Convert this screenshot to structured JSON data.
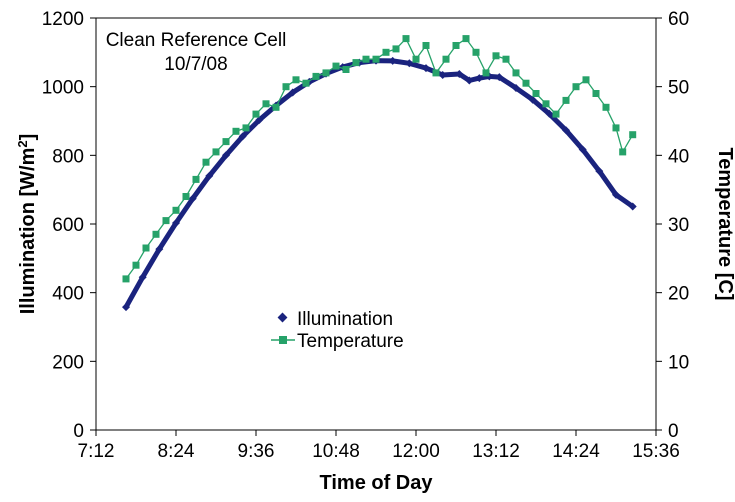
{
  "chart_data": {
    "type": "scatter",
    "annotation": {
      "line1": "Clean Reference Cell",
      "line2": "10/7/08"
    },
    "xlabel": "Time of Day",
    "ylabel_left_main": "Illumination [W/m",
    "ylabel_left_sup": "2",
    "ylabel_left_end": "]",
    "ylabel_right": "Temperature [C]",
    "x_ticks": [
      "7:12",
      "8:24",
      "9:36",
      "10:48",
      "12:00",
      "13:12",
      "14:24",
      "15:36"
    ],
    "x_tick_hours": [
      7.2,
      8.4,
      9.6,
      10.8,
      12.0,
      13.2,
      14.4,
      15.6
    ],
    "xlim_hours": [
      7.2,
      15.6
    ],
    "y_left_ticks": [
      "0",
      "200",
      "400",
      "600",
      "800",
      "1000",
      "1200"
    ],
    "y_left_lim": [
      0,
      1200
    ],
    "y_right_ticks": [
      "0",
      "10",
      "20",
      "30",
      "40",
      "50",
      "60"
    ],
    "y_right_lim": [
      0,
      60
    ],
    "grid": false,
    "legend": {
      "position": "center-lower",
      "entries": [
        "Illumination",
        "Temperature"
      ]
    },
    "series": [
      {
        "name": "Illumination",
        "axis": "left",
        "color": "#1a237e",
        "marker": "diamond",
        "x_hours": [
          7.65,
          7.9,
          8.15,
          8.4,
          8.65,
          8.9,
          9.15,
          9.4,
          9.65,
          9.9,
          10.15,
          10.4,
          10.65,
          10.9,
          11.15,
          11.4,
          11.65,
          11.9,
          12.15,
          12.4,
          12.65,
          12.8,
          12.95,
          13.1,
          13.25,
          13.5,
          13.75,
          14.0,
          14.25,
          14.5,
          14.75,
          15.0,
          15.25
        ],
        "y": [
          358,
          445,
          527,
          603,
          674,
          740,
          800,
          855,
          903,
          945,
          983,
          1014,
          1038,
          1057,
          1070,
          1076,
          1075,
          1068,
          1054,
          1034,
          1037,
          1018,
          1025,
          1030,
          1028,
          996,
          962,
          921,
          873,
          817,
          754,
          685,
          651
        ]
      },
      {
        "name": "Temperature",
        "axis": "right",
        "color": "#26a269",
        "marker": "square",
        "x_hours": [
          7.65,
          7.8,
          7.95,
          8.1,
          8.25,
          8.4,
          8.55,
          8.7,
          8.85,
          9.0,
          9.15,
          9.3,
          9.45,
          9.6,
          9.75,
          9.9,
          10.05,
          10.2,
          10.35,
          10.5,
          10.65,
          10.8,
          10.95,
          11.1,
          11.25,
          11.4,
          11.55,
          11.7,
          11.85,
          12.0,
          12.15,
          12.3,
          12.45,
          12.6,
          12.75,
          12.9,
          13.05,
          13.2,
          13.35,
          13.5,
          13.65,
          13.8,
          13.95,
          14.1,
          14.25,
          14.4,
          14.55,
          14.7,
          14.85,
          15.0,
          15.1,
          15.25
        ],
        "y": [
          22,
          24,
          26.5,
          28.5,
          30.5,
          32,
          34,
          36.5,
          39,
          40.5,
          42,
          43.5,
          44,
          46,
          47.5,
          47,
          50,
          51,
          50.5,
          51.5,
          52,
          53,
          52.5,
          53.5,
          54,
          54,
          55,
          55.5,
          57,
          54,
          56,
          52,
          54,
          56,
          57,
          55,
          52,
          54.5,
          54,
          52,
          50.5,
          49,
          47.5,
          46,
          48,
          50,
          51,
          49,
          47,
          44,
          40.5,
          43
        ]
      }
    ]
  }
}
